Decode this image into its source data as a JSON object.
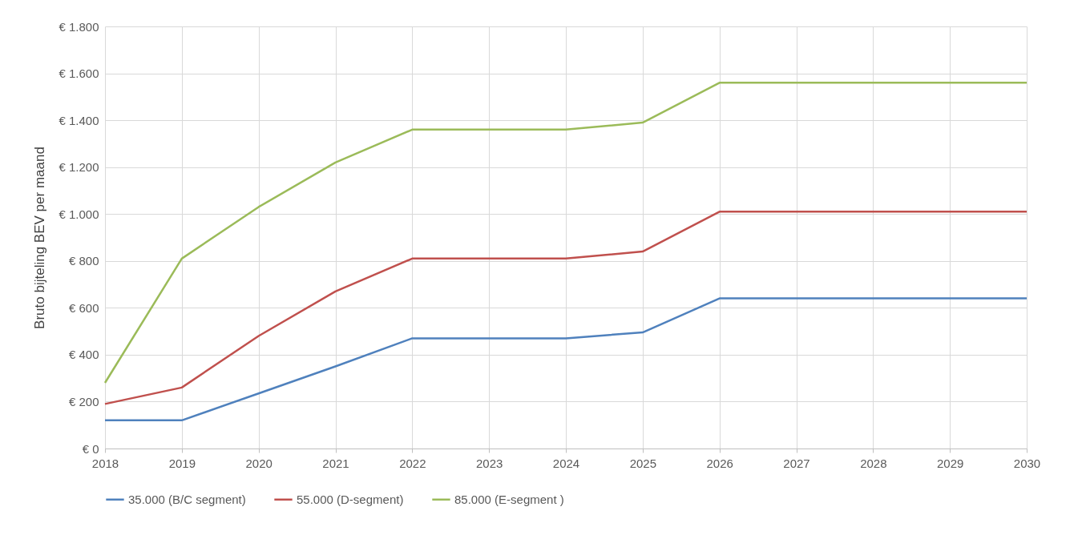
{
  "chart_data": {
    "type": "line",
    "ylabel": "Bruto bijteling BEV per maand",
    "x": [
      2018,
      2019,
      2020,
      2021,
      2022,
      2023,
      2024,
      2025,
      2026,
      2027,
      2028,
      2029,
      2030
    ],
    "xlim": [
      2018,
      2030
    ],
    "xticks": [
      2018,
      2019,
      2020,
      2021,
      2022,
      2023,
      2024,
      2025,
      2026,
      2027,
      2028,
      2029,
      2030
    ],
    "ylim": [
      0,
      1800
    ],
    "yticks": [
      {
        "value": 0,
        "label": "€ 0"
      },
      {
        "value": 200,
        "label": "€ 200"
      },
      {
        "value": 400,
        "label": "€ 400"
      },
      {
        "value": 600,
        "label": "€ 600"
      },
      {
        "value": 800,
        "label": "€ 800"
      },
      {
        "value": 1000,
        "label": "€ 1.000"
      },
      {
        "value": 1200,
        "label": "€ 1.200"
      },
      {
        "value": 1400,
        "label": "€ 1.400"
      },
      {
        "value": 1600,
        "label": "€ 1.600"
      },
      {
        "value": 1800,
        "label": "€ 1.800"
      }
    ],
    "grid": true,
    "legend": "bottom",
    "marker": "none",
    "line_style": "solid",
    "series": [
      {
        "name": "35.000 (B/C segment)",
        "color": "#4f81bd",
        "values": [
          120,
          120,
          235,
          350,
          470,
          470,
          470,
          495,
          640,
          640,
          640,
          640,
          640
        ]
      },
      {
        "name": "55.000 (D-segment)",
        "color": "#c0504d",
        "values": [
          190,
          260,
          480,
          670,
          810,
          810,
          810,
          840,
          1010,
          1010,
          1010,
          1010,
          1010
        ]
      },
      {
        "name": "85.000 (E-segment )",
        "color": "#9bbb59",
        "values": [
          280,
          810,
          1030,
          1220,
          1360,
          1360,
          1360,
          1390,
          1560,
          1560,
          1560,
          1560,
          1560
        ]
      }
    ]
  }
}
